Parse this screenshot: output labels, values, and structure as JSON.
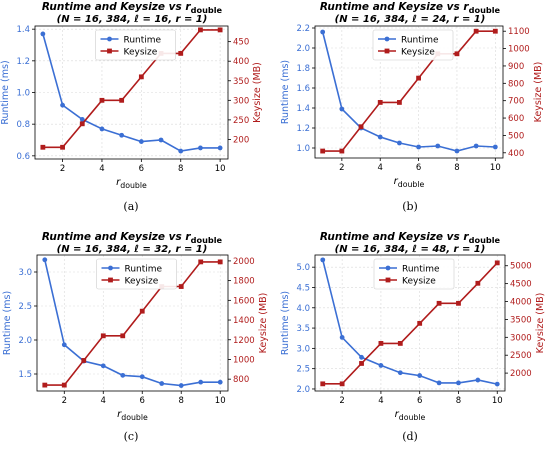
{
  "chart_data": [
    {
      "type": "line",
      "title": "Runtime and Keysize vs r_double",
      "subtitle": "(N = 16, 384, ℓ = 16, r = 1)",
      "caption": "(a)",
      "xlabel": "r_double",
      "ylabel_left": "Runtime (ms)",
      "ylabel_right": "Keysize (MB)",
      "x": [
        1,
        2,
        3,
        4,
        5,
        6,
        7,
        8,
        9,
        10
      ],
      "xticks": [
        2,
        4,
        6,
        8,
        10
      ],
      "xlim": [
        0.6,
        10.4
      ],
      "ylim_left": [
        0.58,
        1.42
      ],
      "yticks_left": [
        0.6,
        0.8,
        1.0,
        1.2,
        1.4
      ],
      "ylim_right": [
        150,
        490
      ],
      "yticks_right": [
        200,
        250,
        300,
        350,
        400,
        450
      ],
      "legend": "top-center",
      "grid": true,
      "series": [
        {
          "name": "Runtime",
          "axis": "left",
          "color": "#3b6fd4",
          "marker": "circle",
          "values": [
            1.37,
            0.92,
            0.83,
            0.77,
            0.73,
            0.69,
            0.7,
            0.63,
            0.65,
            0.65
          ]
        },
        {
          "name": "Keysize",
          "axis": "right",
          "color": "#b01c1c",
          "marker": "square",
          "values": [
            180,
            180,
            240,
            300,
            300,
            360,
            420,
            420,
            480,
            480
          ]
        }
      ]
    },
    {
      "type": "line",
      "title": "Runtime and Keysize vs r_double",
      "subtitle": "(N = 16, 384, ℓ = 24, r = 1)",
      "caption": "(b)",
      "xlabel": "r_double",
      "ylabel_left": "Runtime (ms)",
      "ylabel_right": "Keysize (MB)",
      "x": [
        1,
        2,
        3,
        4,
        5,
        6,
        7,
        8,
        9,
        10
      ],
      "xticks": [
        2,
        4,
        6,
        8,
        10
      ],
      "xlim": [
        0.6,
        10.4
      ],
      "ylim_left": [
        0.9,
        2.22
      ],
      "yticks_left": [
        1.0,
        1.2,
        1.4,
        1.6,
        1.8,
        2.0,
        2.2
      ],
      "ylim_right": [
        370,
        1130
      ],
      "yticks_right": [
        400,
        500,
        600,
        700,
        800,
        900,
        1000,
        1100
      ],
      "legend": "top-center",
      "grid": true,
      "series": [
        {
          "name": "Runtime",
          "axis": "left",
          "color": "#3b6fd4",
          "marker": "circle",
          "values": [
            2.16,
            1.39,
            1.2,
            1.11,
            1.05,
            1.01,
            1.02,
            0.97,
            1.02,
            1.01
          ]
        },
        {
          "name": "Keysize",
          "axis": "right",
          "color": "#b01c1c",
          "marker": "square",
          "values": [
            410,
            410,
            550,
            690,
            690,
            830,
            970,
            970,
            1100,
            1100
          ]
        }
      ]
    },
    {
      "type": "line",
      "title": "Runtime and Keysize vs r_double",
      "subtitle": "(N = 16, 384, ℓ = 32, r = 1)",
      "caption": "(c)",
      "xlabel": "r_double",
      "ylabel_left": "Runtime (ms)",
      "ylabel_right": "Keysize (MB)",
      "x": [
        1,
        2,
        3,
        4,
        5,
        6,
        7,
        8,
        9,
        10
      ],
      "xticks": [
        2,
        4,
        6,
        8,
        10
      ],
      "xlim": [
        0.6,
        10.4
      ],
      "ylim_left": [
        1.25,
        3.25
      ],
      "yticks_left": [
        1.5,
        2.0,
        2.5,
        3.0
      ],
      "ylim_right": [
        680,
        2060
      ],
      "yticks_right": [
        800,
        1000,
        1200,
        1400,
        1600,
        1800,
        2000
      ],
      "legend": "top-center",
      "grid": true,
      "series": [
        {
          "name": "Runtime",
          "axis": "left",
          "color": "#3b6fd4",
          "marker": "circle",
          "values": [
            3.18,
            1.93,
            1.69,
            1.62,
            1.48,
            1.46,
            1.36,
            1.33,
            1.38,
            1.38
          ]
        },
        {
          "name": "Keysize",
          "axis": "right",
          "color": "#b01c1c",
          "marker": "square",
          "values": [
            740,
            740,
            990,
            1240,
            1240,
            1490,
            1740,
            1740,
            1990,
            1990
          ]
        }
      ]
    },
    {
      "type": "line",
      "title": "Runtime and Keysize vs r_double",
      "subtitle": "(N = 16, 384, ℓ = 48, r = 1)",
      "caption": "(d)",
      "xlabel": "r_double",
      "ylabel_left": "Runtime (ms)",
      "ylabel_right": "Keysize (MB)",
      "x": [
        1,
        2,
        3,
        4,
        5,
        6,
        7,
        8,
        9,
        10
      ],
      "xticks": [
        2,
        4,
        6,
        8,
        10
      ],
      "xlim": [
        0.6,
        10.4
      ],
      "ylim_left": [
        1.95,
        5.3
      ],
      "yticks_left": [
        2.0,
        2.5,
        3.0,
        3.5,
        4.0,
        4.5,
        5.0
      ],
      "ylim_right": [
        1500,
        5300
      ],
      "yticks_right": [
        2000,
        2500,
        3000,
        3500,
        4000,
        4500,
        5000
      ],
      "legend": "top-center",
      "grid": true,
      "series": [
        {
          "name": "Runtime",
          "axis": "left",
          "color": "#3b6fd4",
          "marker": "circle",
          "values": [
            5.18,
            3.27,
            2.78,
            2.58,
            2.4,
            2.33,
            2.15,
            2.15,
            2.22,
            2.12
          ]
        },
        {
          "name": "Keysize",
          "axis": "right",
          "color": "#b01c1c",
          "marker": "square",
          "values": [
            1700,
            1700,
            2270,
            2830,
            2830,
            3390,
            3950,
            3950,
            4510,
            5080
          ]
        }
      ]
    }
  ]
}
